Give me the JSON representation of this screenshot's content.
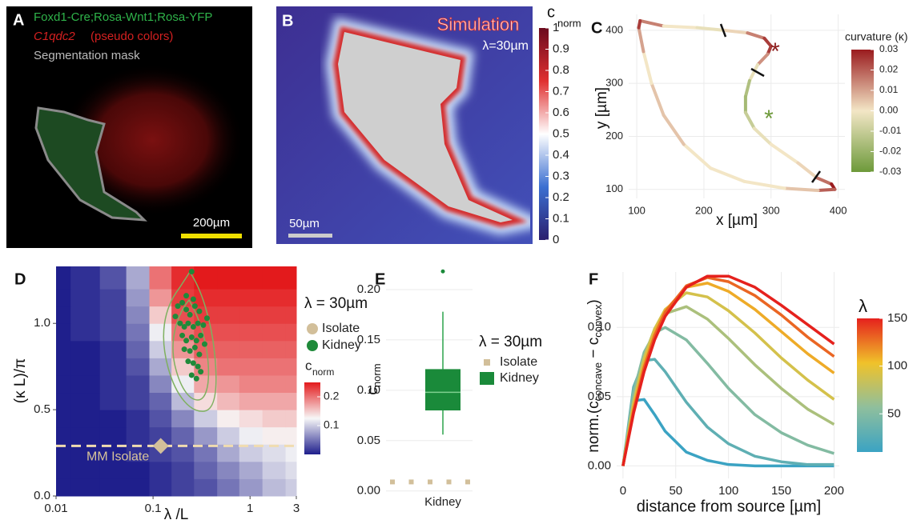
{
  "panel_a": {
    "letter": "A",
    "line1": "Foxd1-Cre;Rosa-Wnt1;Rosa-YFP",
    "gene": "C1qdc2",
    "gene_note": "(pseudo colors)",
    "line3": "Segmentation mask",
    "scale_bar": "200µm"
  },
  "panel_b": {
    "letter": "B",
    "title": "Simulation",
    "lambda": "λ=30µm",
    "scale_bar": "50µm",
    "colorbar": {
      "title": "c",
      "sub": "norm",
      "lim": [
        0,
        1
      ],
      "ticks": [
        0,
        0.1,
        0.2,
        0.3,
        0.4,
        0.5,
        0.6,
        0.7,
        0.8,
        0.9,
        1
      ],
      "colors": [
        "#2b1e6e",
        "#3b6fd1",
        "#ffffff",
        "#e03030",
        "#6b0a1e"
      ]
    }
  },
  "chart_data": [
    {
      "panel": "C",
      "type": "line",
      "x": [
        105,
        140,
        190,
        230,
        265,
        290,
        300,
        295,
        280,
        268,
        262,
        262,
        275,
        300,
        340,
        368,
        390,
        395,
        370,
        320,
        260,
        210,
        170,
        140,
        122,
        110,
        103,
        105
      ],
      "y": [
        418,
        408,
        405,
        400,
        395,
        385,
        370,
        355,
        335,
        305,
        275,
        245,
        215,
        185,
        150,
        122,
        110,
        100,
        98,
        102,
        115,
        140,
        185,
        240,
        300,
        360,
        405,
        418
      ],
      "color_values": [
        0.03,
        0,
        0,
        -0.005,
        0.01,
        0.02,
        0.03,
        0.02,
        0.005,
        -0.01,
        -0.02,
        -0.015,
        -0.005,
        0,
        0,
        0.005,
        0.03,
        0.03,
        0.01,
        0,
        0,
        0,
        0,
        0.01,
        0,
        0,
        0.02,
        0.03
      ],
      "xlabel": "x [µm]",
      "ylabel": "y [µm]",
      "xlim": [
        88,
        410
      ],
      "ylim": [
        83,
        430
      ],
      "xticks": [
        100,
        200,
        300,
        400
      ],
      "yticks": [
        100,
        200,
        300,
        400
      ],
      "grid": true,
      "annotations": [
        "*",
        "*"
      ],
      "colorbar": {
        "title": "curvature (κ)",
        "lim": [
          -0.03,
          0.03
        ],
        "ticks": [
          0.03,
          0.02,
          0.01,
          {
            "value": 0,
            "label": "0.00"
          },
          -0.01,
          -0.02,
          -0.03
        ],
        "colors": [
          "#6d9a3a",
          "#f3e6c6",
          "#9a1b1e"
        ]
      }
    },
    {
      "panel": "D",
      "type": "heatmap",
      "xscale": "log",
      "x": [
        0.01,
        0.02,
        0.04,
        0.07,
        0.12,
        0.2,
        0.35,
        0.6,
        1,
        1.8,
        3
      ],
      "y": [
        0.05,
        0.15,
        0.25,
        0.35,
        0.45,
        0.55,
        0.65,
        0.75,
        0.85,
        0.95,
        1.05,
        1.15,
        1.25
      ],
      "z": [
        [
          0,
          0,
          0,
          0,
          0.01,
          0.02,
          0.03,
          0.05,
          0.07,
          0.09,
          0.1
        ],
        [
          0,
          0,
          0,
          0,
          0.01,
          0.02,
          0.04,
          0.06,
          0.08,
          0.1,
          0.11
        ],
        [
          0,
          0,
          0,
          0.01,
          0.02,
          0.03,
          0.05,
          0.08,
          0.1,
          0.11,
          0.12
        ],
        [
          0,
          0,
          0,
          0.01,
          0.02,
          0.04,
          0.07,
          0.1,
          0.12,
          0.13,
          0.13
        ],
        [
          0,
          0,
          0,
          0.01,
          0.03,
          0.06,
          0.1,
          0.13,
          0.14,
          0.15,
          0.15
        ],
        [
          0,
          0,
          0.01,
          0.02,
          0.04,
          0.09,
          0.14,
          0.16,
          0.17,
          0.17,
          0.17
        ],
        [
          0,
          0,
          0.01,
          0.02,
          0.06,
          0.12,
          0.17,
          0.18,
          0.19,
          0.19,
          0.19
        ],
        [
          0,
          0,
          0.01,
          0.03,
          0.08,
          0.15,
          0.19,
          0.2,
          0.2,
          0.2,
          0.2
        ],
        [
          0,
          0,
          0.01,
          0.04,
          0.1,
          0.18,
          0.21,
          0.21,
          0.21,
          0.21,
          0.21
        ],
        [
          0,
          0.01,
          0.02,
          0.05,
          0.12,
          0.2,
          0.22,
          0.22,
          0.22,
          0.22,
          0.22
        ],
        [
          0,
          0.01,
          0.02,
          0.06,
          0.15,
          0.22,
          0.23,
          0.23,
          0.23,
          0.23,
          0.23
        ],
        [
          0,
          0.01,
          0.02,
          0.07,
          0.18,
          0.23,
          0.24,
          0.24,
          0.24,
          0.24,
          0.24
        ],
        [
          0,
          0.01,
          0.03,
          0.08,
          0.2,
          0.24,
          0.25,
          0.25,
          0.25,
          0.25,
          0.25
        ]
      ],
      "xlabel": "λ /L",
      "ylabel": "(κ L)/π",
      "xlim": [
        0.01,
        3
      ],
      "ylim": [
        0,
        1.33
      ],
      "xticks": [
        0.01,
        0.1,
        1,
        3
      ],
      "yticks": [
        {
          "value": 0,
          "label": "0.0"
        },
        0.5,
        {
          "value": 1,
          "label": "1.0"
        }
      ],
      "series": [
        {
          "name": "Isolate",
          "color": "#d2bf9a",
          "x": [
            0.12
          ],
          "y": [
            0.29
          ]
        },
        {
          "name": "Kidney",
          "color": "#1f8a3a",
          "x": [
            0.25,
            0.18,
            0.2,
            0.22,
            0.24,
            0.27,
            0.3,
            0.19,
            0.21,
            0.23,
            0.26,
            0.29,
            0.33,
            0.2,
            0.22,
            0.25,
            0.28,
            0.31,
            0.21,
            0.24,
            0.27,
            0.3,
            0.23,
            0.26,
            0.29,
            0.25,
            0.28,
            0.31,
            0.34,
            0.36,
            0.17,
            0.22,
            0.26
          ],
          "y": [
            1.3,
            1.1,
            1.12,
            1.08,
            1.05,
            1.1,
            1.07,
            1,
            0.98,
            1,
            0.98,
            1,
            0.99,
            0.93,
            0.9,
            0.92,
            0.9,
            0.93,
            0.85,
            0.84,
            0.86,
            0.82,
            0.78,
            0.77,
            0.75,
            0.7,
            0.68,
            0.72,
            0.88,
            1.03,
            1.04,
            1.16,
            1.14
          ]
        }
      ],
      "hline": {
        "y": 0.29,
        "label": "MM Isolate"
      },
      "legend_title": "λ = 30µm",
      "colorbar": {
        "title": "c",
        "sub": "norm",
        "lim": [
          0,
          0.25
        ],
        "ticks": [
          0.1,
          0.2
        ],
        "colors": [
          "#1f1f8c",
          "#f7f7f7",
          "#e31a1c"
        ]
      }
    },
    {
      "panel": "E",
      "type": "box",
      "categories": [
        "Kidney"
      ],
      "ylabel": "c",
      "ylabel_sub": "norm",
      "ylim": [
        -0.001,
        0.223
      ],
      "yticks": [
        {
          "value": 0,
          "label": "0.00"
        },
        0.05,
        {
          "value": 0.1,
          "label": "0.10"
        },
        0.15,
        {
          "value": 0.2,
          "label": "0.20"
        }
      ],
      "legend_title": "λ = 30µm",
      "series": [
        {
          "name": "Isolate",
          "color": "#d2bf9a",
          "values": [
            0.009,
            0.009,
            0.009,
            0.009,
            0.009
          ]
        },
        {
          "name": "Kidney",
          "color": "#1a8a3a",
          "box": {
            "whislo": 0.056,
            "q1": 0.08,
            "med": 0.098,
            "q3": 0.121,
            "whishi": 0.178
          },
          "fliers": [
            0.218
          ]
        }
      ]
    },
    {
      "panel": "F",
      "type": "line",
      "x": [
        0,
        10,
        20,
        30,
        40,
        60,
        80,
        100,
        125,
        150,
        175,
        200
      ],
      "series": [
        {
          "lambda": 10,
          "values": [
            0,
            0.047,
            0.048,
            0.037,
            0.025,
            0.01,
            0.004,
            0.001,
            0,
            0,
            0,
            0
          ]
        },
        {
          "lambda": 30,
          "values": [
            0,
            0.057,
            0.076,
            0.077,
            0.068,
            0.046,
            0.028,
            0.016,
            0.007,
            0.003,
            0.001,
            0.001
          ]
        },
        {
          "lambda": 50,
          "values": [
            0,
            0.053,
            0.082,
            0.096,
            0.1,
            0.091,
            0.074,
            0.056,
            0.037,
            0.024,
            0.015,
            0.009
          ]
        },
        {
          "lambda": 70,
          "values": [
            0,
            0.047,
            0.079,
            0.099,
            0.11,
            0.115,
            0.106,
            0.092,
            0.073,
            0.056,
            0.041,
            0.03
          ]
        },
        {
          "lambda": 90,
          "values": [
            0,
            0.045,
            0.077,
            0.099,
            0.113,
            0.125,
            0.122,
            0.112,
            0.096,
            0.078,
            0.062,
            0.048
          ]
        },
        {
          "lambda": 110,
          "values": [
            0,
            0.042,
            0.073,
            0.096,
            0.112,
            0.129,
            0.132,
            0.126,
            0.113,
            0.097,
            0.081,
            0.067
          ]
        },
        {
          "lambda": 130,
          "values": [
            0,
            0.04,
            0.071,
            0.094,
            0.111,
            0.13,
            0.136,
            0.133,
            0.123,
            0.109,
            0.093,
            0.079
          ]
        },
        {
          "lambda": 150,
          "values": [
            0,
            0.038,
            0.068,
            0.091,
            0.108,
            0.129,
            0.137,
            0.137,
            0.129,
            0.116,
            0.102,
            0.088
          ]
        }
      ],
      "xlabel": "distance from source [µm]",
      "ylabel": [
        "norm.(c",
        "concave",
        " − c",
        "convex",
        ")"
      ],
      "xlim": [
        -6,
        205
      ],
      "ylim": [
        -0.009,
        0.14
      ],
      "xticks": [
        0,
        50,
        100,
        150,
        200
      ],
      "yticks": [
        {
          "value": 0,
          "label": "0.00"
        },
        0.05,
        {
          "value": 0.1,
          "label": "0.10"
        }
      ],
      "grid": true,
      "colorbar": {
        "title": "λ",
        "lim": [
          10,
          150
        ],
        "ticks": [
          50,
          100,
          150
        ],
        "colors": [
          "#3ba3c3",
          "#8fbf9d",
          "#f0c22a",
          "#e5211d"
        ]
      }
    }
  ]
}
